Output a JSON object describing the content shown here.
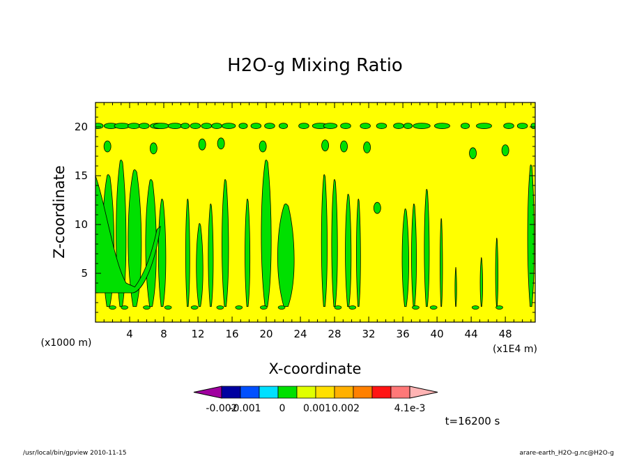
{
  "chart_data": {
    "type": "heatmap",
    "title": "H2O-g Mixing Ratio",
    "xlabel": "X-coordinate",
    "ylabel": "Z-coordinate",
    "x_unit": "(x1000 m)",
    "x_scale_note": "(x1E4 m)",
    "xlim": [
      0,
      51.5
    ],
    "ylim": [
      0,
      22.5
    ],
    "x_ticks": [
      "4",
      "8",
      "12",
      "16",
      "20",
      "24",
      "28",
      "32",
      "36",
      "40",
      "44",
      "48"
    ],
    "y_ticks": [
      "5",
      "10",
      "15",
      "20"
    ],
    "colorbar": {
      "colors": [
        "#a000a0",
        "#0000a0",
        "#0050ff",
        "#00e0ff",
        "#00e000",
        "#e0ff00",
        "#ffe000",
        "#ffb000",
        "#ff8000",
        "#ff1414",
        "#ff7878",
        "#ffb4b4"
      ],
      "labels": [
        "-0.002",
        "-0.001",
        "0",
        "0.001",
        "0.002",
        "4.1e-3"
      ],
      "background_color": "#ffff00",
      "feature_color": "#00e000"
    },
    "time_label": "t=16200 s",
    "columns": [
      {
        "x": 1.5,
        "width": 1.4,
        "top": 15.0
      },
      {
        "x": 3.0,
        "width": 1.2,
        "top": 16.5
      },
      {
        "x": 4.6,
        "width": 1.6,
        "top": 15.5
      },
      {
        "x": 6.5,
        "width": 1.3,
        "top": 14.5
      },
      {
        "x": 7.8,
        "width": 0.9,
        "top": 12.5
      },
      {
        "x": 10.8,
        "width": 0.5,
        "top": 12.5
      },
      {
        "x": 12.2,
        "width": 0.8,
        "top": 10.0
      },
      {
        "x": 13.5,
        "width": 0.6,
        "top": 12.0
      },
      {
        "x": 15.2,
        "width": 0.8,
        "top": 14.5
      },
      {
        "x": 17.8,
        "width": 0.6,
        "top": 12.5
      },
      {
        "x": 20.0,
        "width": 1.2,
        "top": 16.5
      },
      {
        "x": 22.3,
        "width": 2.0,
        "top": 12.0
      },
      {
        "x": 26.8,
        "width": 0.7,
        "top": 15.0
      },
      {
        "x": 28.0,
        "width": 0.7,
        "top": 14.5
      },
      {
        "x": 29.6,
        "width": 0.7,
        "top": 13.0
      },
      {
        "x": 30.8,
        "width": 0.5,
        "top": 12.5
      },
      {
        "x": 36.3,
        "width": 0.8,
        "top": 11.5
      },
      {
        "x": 37.3,
        "width": 0.6,
        "top": 12.0
      },
      {
        "x": 38.8,
        "width": 0.6,
        "top": 13.5
      },
      {
        "x": 40.5,
        "width": 0.3,
        "top": 10.5
      },
      {
        "x": 42.2,
        "width": 0.2,
        "top": 5.5
      },
      {
        "x": 45.2,
        "width": 0.3,
        "top": 6.5
      },
      {
        "x": 47.0,
        "width": 0.3,
        "top": 8.5
      },
      {
        "x": 51.0,
        "width": 0.8,
        "top": 16.0
      }
    ],
    "blobs_z20": [
      {
        "x": 0.3,
        "w": 0.6
      },
      {
        "x": 1.8,
        "w": 0.8
      },
      {
        "x": 3.1,
        "w": 0.9
      },
      {
        "x": 4.5,
        "w": 0.7
      },
      {
        "x": 5.7,
        "w": 0.6
      },
      {
        "x": 7.3,
        "w": 0.9
      },
      {
        "x": 7.7,
        "w": 0.9
      },
      {
        "x": 9.3,
        "w": 0.8
      },
      {
        "x": 10.5,
        "w": 0.5
      },
      {
        "x": 11.7,
        "w": 0.6
      },
      {
        "x": 13.0,
        "w": 0.6
      },
      {
        "x": 14.2,
        "w": 0.6
      },
      {
        "x": 15.6,
        "w": 0.8
      },
      {
        "x": 17.3,
        "w": 0.5
      },
      {
        "x": 18.8,
        "w": 0.6
      },
      {
        "x": 20.4,
        "w": 0.6
      },
      {
        "x": 22.0,
        "w": 0.5
      },
      {
        "x": 24.4,
        "w": 0.6
      },
      {
        "x": 26.3,
        "w": 0.9
      },
      {
        "x": 27.5,
        "w": 0.8
      },
      {
        "x": 29.3,
        "w": 0.6
      },
      {
        "x": 31.6,
        "w": 0.6
      },
      {
        "x": 33.5,
        "w": 0.6
      },
      {
        "x": 35.5,
        "w": 0.6
      },
      {
        "x": 36.6,
        "w": 0.5
      },
      {
        "x": 38.2,
        "w": 1.0
      },
      {
        "x": 40.6,
        "w": 0.9
      },
      {
        "x": 43.3,
        "w": 0.5
      },
      {
        "x": 45.5,
        "w": 0.9
      },
      {
        "x": 48.4,
        "w": 0.6
      },
      {
        "x": 50.0,
        "w": 0.6
      },
      {
        "x": 51.3,
        "w": 0.3
      }
    ],
    "blobs_z18": [
      {
        "x": 1.4,
        "y": 18.0
      },
      {
        "x": 6.8,
        "y": 17.8
      },
      {
        "x": 12.5,
        "y": 18.2
      },
      {
        "x": 14.7,
        "y": 18.3
      },
      {
        "x": 19.6,
        "y": 18.0
      },
      {
        "x": 26.9,
        "y": 18.1
      },
      {
        "x": 29.1,
        "y": 18.0
      },
      {
        "x": 31.8,
        "y": 17.9
      },
      {
        "x": 44.2,
        "y": 17.3
      },
      {
        "x": 48.0,
        "y": 17.6
      },
      {
        "x": 33.0,
        "y": 11.7
      }
    ]
  },
  "footer": {
    "left": "/usr/local/bin/gpview  2010-11-15",
    "right": "arare-earth_H2O-g.nc@H2O-g"
  }
}
